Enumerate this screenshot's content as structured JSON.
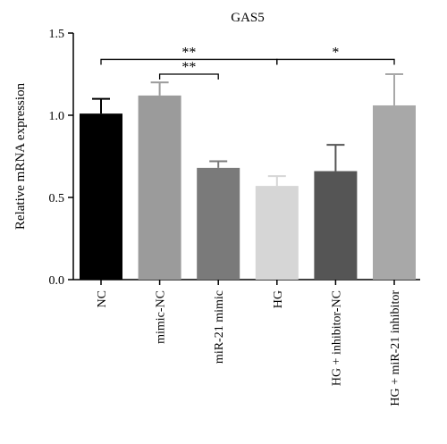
{
  "chart_data": {
    "type": "bar",
    "title": "GAS5",
    "ylabel": "Relative mRNA expression",
    "xlabel": "",
    "ylim": [
      0,
      1.5
    ],
    "yticks": [
      "0.0",
      "0.5",
      "1.0",
      "1.5"
    ],
    "categories": [
      "NC",
      "mimic-NC",
      "miR-21 mimic",
      "HG",
      "HG + inhibitor-NC",
      "HG + miR-21 inhibitor"
    ],
    "values": [
      1.01,
      1.12,
      0.68,
      0.57,
      0.66,
      1.06
    ],
    "errors": [
      0.09,
      0.08,
      0.04,
      0.06,
      0.16,
      0.19
    ],
    "colors": [
      "#000000",
      "#9b9b9b",
      "#7a7a7a",
      "#d6d6d6",
      "#555555",
      "#a8a8a8"
    ],
    "significance": [
      {
        "from": 0,
        "to": 3,
        "label": "**",
        "y": 1.34
      },
      {
        "from": 1,
        "to": 2,
        "label": "**",
        "y": 1.25
      },
      {
        "from": 3,
        "to": 5,
        "label": "*",
        "y": 1.34
      }
    ],
    "grid": false,
    "legend": "none"
  }
}
